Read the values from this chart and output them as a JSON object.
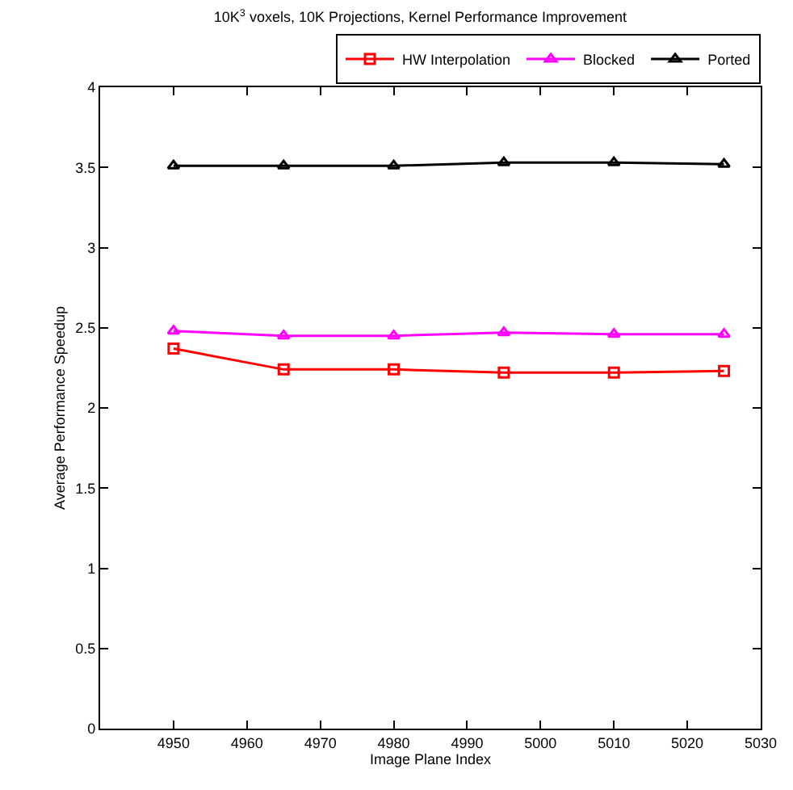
{
  "chart_data": {
    "type": "line",
    "title": "10K$^{3}$ voxels, 10K Projections, Kernel Performance Improvement",
    "xlabel": "Image Plane Index",
    "ylabel": "Average Performance Speedup",
    "x": [
      4950,
      4965,
      4980,
      4995,
      5010,
      5025
    ],
    "series": [
      {
        "name": "HW Interpolation",
        "color": "#ff0000",
        "marker": "square",
        "values": [
          2.37,
          2.24,
          2.24,
          2.22,
          2.22,
          2.23
        ]
      },
      {
        "name": "Blocked",
        "color": "#ff00ff",
        "marker": "triangle",
        "values": [
          2.48,
          2.45,
          2.45,
          2.47,
          2.46,
          2.46
        ]
      },
      {
        "name": "Ported",
        "color": "#000000",
        "marker": "triangle",
        "values": [
          3.51,
          3.51,
          3.51,
          3.53,
          3.53,
          3.52
        ]
      }
    ],
    "xlim": [
      4940,
      5030
    ],
    "xticks": [
      4950,
      4960,
      4970,
      4980,
      4990,
      5000,
      5010,
      5020,
      5030
    ],
    "ylim": [
      0,
      4
    ],
    "yticks": [
      0,
      0.5,
      1,
      1.5,
      2,
      2.5,
      3,
      3.5,
      4
    ],
    "grid": false,
    "legend": "top",
    "line_style": "solid"
  }
}
